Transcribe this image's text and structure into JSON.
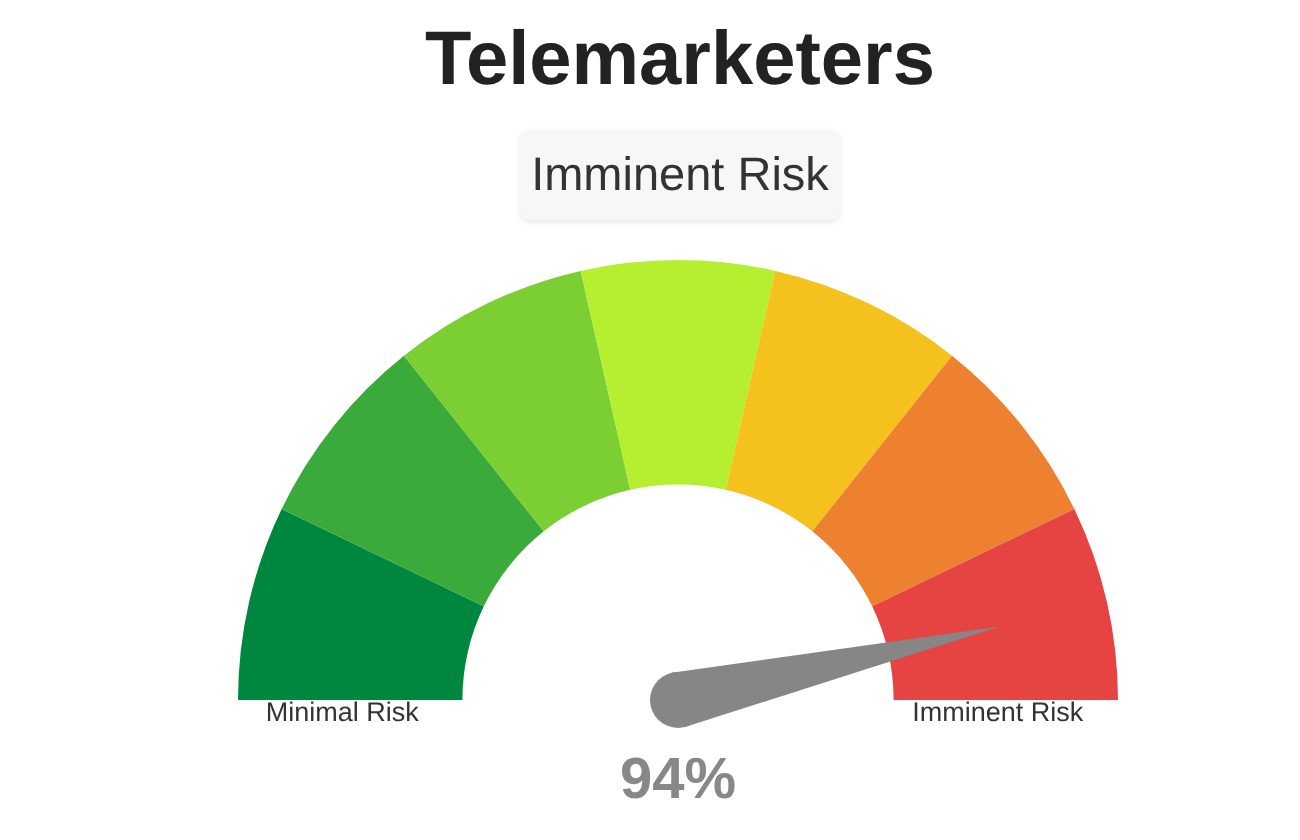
{
  "chart_data": {
    "type": "donut",
    "title": "Telemarketers",
    "subtitle": "Imminent Risk",
    "categories": [
      "Minimal Risk",
      null,
      null,
      null,
      null,
      null,
      "Imminent Risk"
    ],
    "values": [
      14.3,
      14.3,
      14.3,
      14.2,
      14.3,
      14.3,
      14.3
    ],
    "colors": [
      "#00873f",
      "#3aaa3a",
      "#7ccf33",
      "#b5ef2f",
      "#f5c11c",
      "#ee8130",
      "#e64343"
    ],
    "needle": "Imminent Risk",
    "annotations": [
      "94%"
    ]
  }
}
